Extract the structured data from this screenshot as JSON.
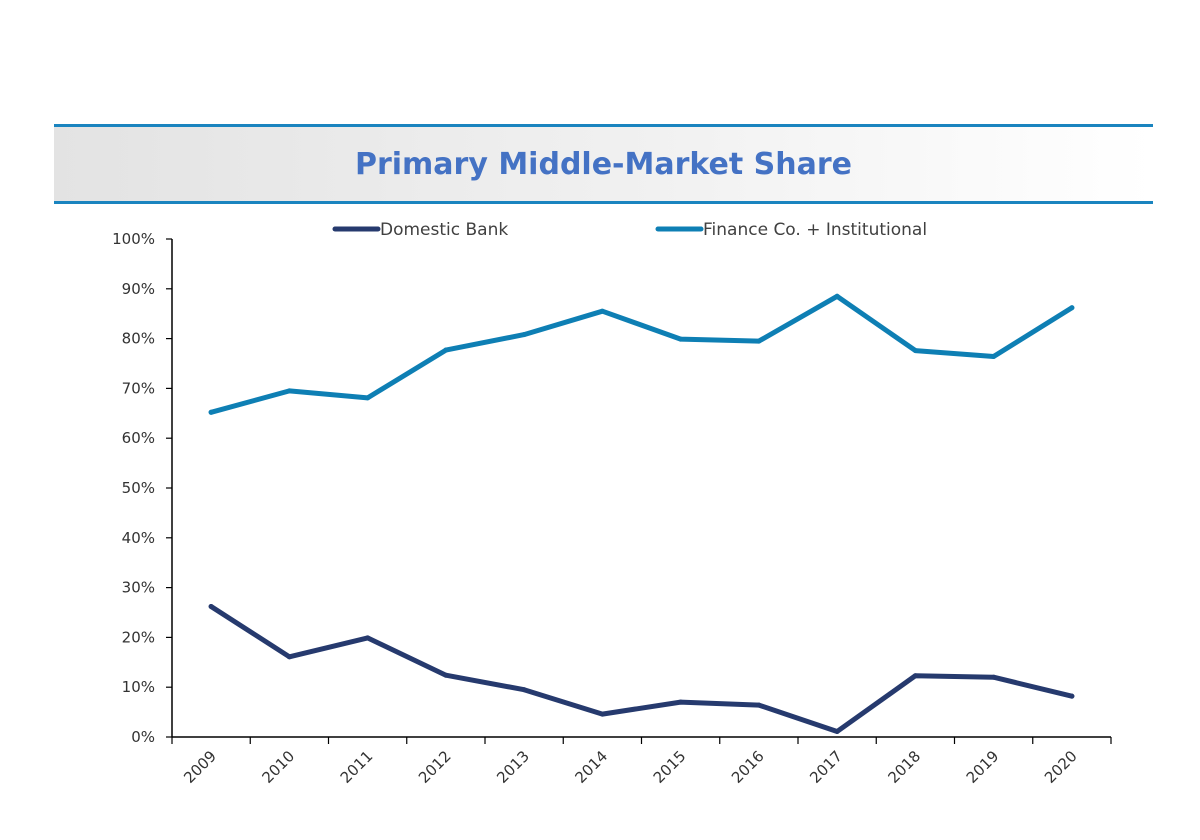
{
  "chart_data": {
    "type": "line",
    "title": "Primary Middle-Market Share",
    "categories": [
      "2009",
      "2010",
      "2011",
      "2012",
      "2013",
      "2014",
      "2015",
      "2016",
      "2017",
      "2018",
      "2019",
      "2020"
    ],
    "ylim": [
      0,
      100
    ],
    "yticks": [
      "0%",
      "10%",
      "20%",
      "30%",
      "40%",
      "50%",
      "60%",
      "70%",
      "80%",
      "90%",
      "100%"
    ],
    "grid": false,
    "legend_position": "top",
    "series": [
      {
        "name": "Domestic Bank",
        "color": "#263a6e",
        "values": [
          26.2,
          16.1,
          19.9,
          12.4,
          9.5,
          4.6,
          7.0,
          6.4,
          1.1,
          12.3,
          12.0,
          8.2
        ]
      },
      {
        "name": "Finance Co. + Institutional",
        "color": "#0e7fb4",
        "values": [
          65.2,
          69.5,
          68.1,
          77.7,
          80.8,
          85.5,
          79.9,
          79.5,
          88.5,
          77.6,
          76.4,
          86.2
        ]
      }
    ]
  }
}
